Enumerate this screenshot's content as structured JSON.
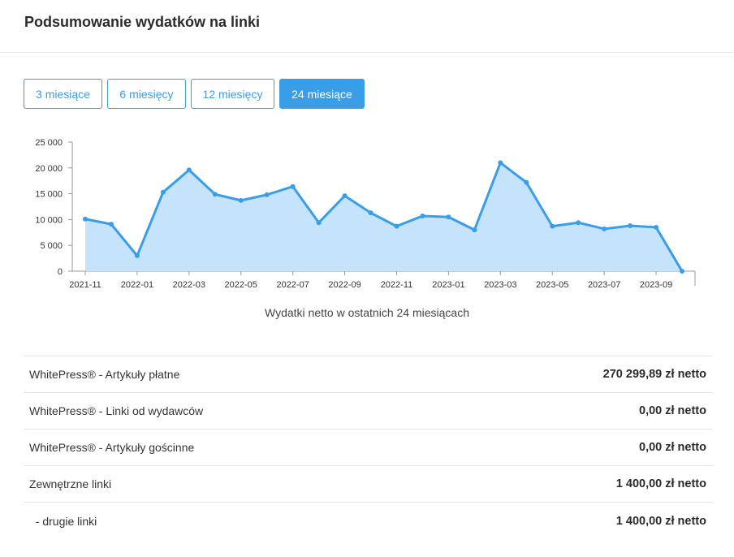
{
  "header": {
    "title": "Podsumowanie wydatków na linki"
  },
  "range_tabs": [
    {
      "label": "3 miesiące",
      "active": false
    },
    {
      "label": "6 miesięcy",
      "active": false
    },
    {
      "label": "12 miesięcy",
      "active": false
    },
    {
      "label": "24 miesiące",
      "active": true
    }
  ],
  "colors": {
    "accent": "#3a9de8",
    "area_fill": "#c5e3fa",
    "line": "#3a9de8"
  },
  "chart_data": {
    "type": "area",
    "title": "",
    "caption": "Wydatki netto w ostatnich 24 miesiącach",
    "xlabel": "",
    "ylabel": "",
    "ylim": [
      0,
      25000
    ],
    "y_ticks": [
      0,
      5000,
      10000,
      15000,
      20000,
      25000
    ],
    "y_tick_labels": [
      "0",
      "5 000",
      "10 000",
      "15 000",
      "20 000",
      "25 000"
    ],
    "x_tick_labels": [
      "2021-11",
      "2022-01",
      "2022-03",
      "2022-05",
      "2022-07",
      "2022-09",
      "2022-11",
      "2023-01",
      "2023-03",
      "2023-05",
      "2023-07",
      "2023-09"
    ],
    "x": [
      "2021-11",
      "2021-12",
      "2022-01",
      "2022-02",
      "2022-03",
      "2022-04",
      "2022-05",
      "2022-06",
      "2022-07",
      "2022-08",
      "2022-09",
      "2022-10",
      "2022-11",
      "2022-12",
      "2023-01",
      "2023-02",
      "2023-03",
      "2023-04",
      "2023-05",
      "2023-06",
      "2023-07",
      "2023-08",
      "2023-09",
      "2023-10"
    ],
    "series": [
      {
        "values": [
          10100,
          9100,
          3000,
          15300,
          19600,
          14900,
          13700,
          14800,
          16400,
          9400,
          14600,
          11300,
          8700,
          10700,
          10500,
          8000,
          21000,
          17200,
          8700,
          9400,
          8200,
          8800,
          8500,
          0
        ]
      }
    ],
    "grid": false,
    "legend": "none"
  },
  "summary": {
    "rows": [
      {
        "label": "WhitePress® - Artykuły płatne",
        "value": "270 299,89 zł netto"
      },
      {
        "label": "WhitePress® - Linki od wydawców",
        "value": "0,00 zł netto"
      },
      {
        "label": "WhitePress® - Artykuły gościnne",
        "value": "0,00 zł netto"
      },
      {
        "label": "Zewnętrzne linki",
        "value": "1 400,00 zł netto"
      },
      {
        "label": "  - drugie linki",
        "value": "1 400,00 zł netto"
      }
    ]
  }
}
